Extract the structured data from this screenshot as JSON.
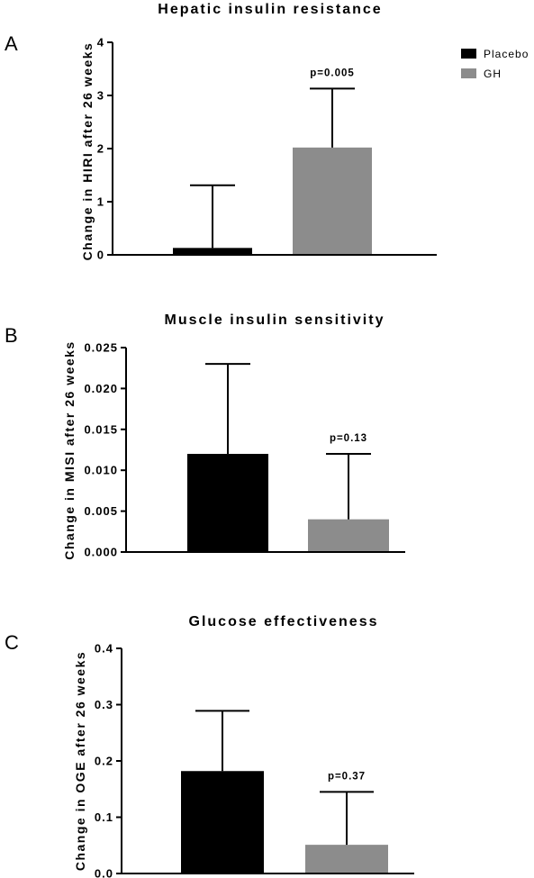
{
  "legend": {
    "items": [
      {
        "label": "Placebo",
        "color": "#000000"
      },
      {
        "label": "GH",
        "color": "#8c8c8c"
      }
    ]
  },
  "chart_data": [
    {
      "type": "bar",
      "panel": "A",
      "title": "Hepatic insulin resistance",
      "ylabel": "Change in HIRI after 26 weeks",
      "xlabel": "",
      "ylim": [
        0,
        4
      ],
      "yticks": [
        0,
        1,
        2,
        3,
        4
      ],
      "ytick_labels": [
        "0",
        "1",
        "2",
        "3",
        "4"
      ],
      "categories": [
        "Placebo",
        "GH"
      ],
      "values": [
        0.13,
        2.02
      ],
      "error_upper": [
        1.31,
        3.13
      ],
      "colors": [
        "#000000",
        "#8c8c8c"
      ],
      "annotation": {
        "bar": 1,
        "text": "p=0.005"
      },
      "grid": false,
      "legend": "top-right"
    },
    {
      "type": "bar",
      "panel": "B",
      "title": "Muscle insulin sensitivity",
      "ylabel": "Change in MISI after 26 weeks",
      "xlabel": "",
      "ylim": [
        0,
        0.025
      ],
      "yticks": [
        0,
        0.005,
        0.01,
        0.015,
        0.02,
        0.025
      ],
      "ytick_labels": [
        "0.000",
        "0.005",
        "0.010",
        "0.015",
        "0.020",
        "0.025"
      ],
      "categories": [
        "Placebo",
        "GH"
      ],
      "values": [
        0.012,
        0.004
      ],
      "error_upper": [
        0.023,
        0.012
      ],
      "colors": [
        "#000000",
        "#8c8c8c"
      ],
      "annotation": {
        "bar": 1,
        "text": "p=0.13"
      },
      "grid": false
    },
    {
      "type": "bar",
      "panel": "C",
      "title": "Glucose effectiveness",
      "ylabel": "Change in OGE after 26 weeks",
      "xlabel": "",
      "ylim": [
        0,
        0.4
      ],
      "yticks": [
        0,
        0.1,
        0.2,
        0.3,
        0.4
      ],
      "ytick_labels": [
        "0.0",
        "0.1",
        "0.2",
        "0.3",
        "0.4"
      ],
      "categories": [
        "Placebo",
        "GH"
      ],
      "values": [
        0.182,
        0.051
      ],
      "error_upper": [
        0.289,
        0.145
      ],
      "colors": [
        "#000000",
        "#8c8c8c"
      ],
      "annotation": {
        "bar": 1,
        "text": "p=0.37"
      },
      "grid": false
    }
  ]
}
